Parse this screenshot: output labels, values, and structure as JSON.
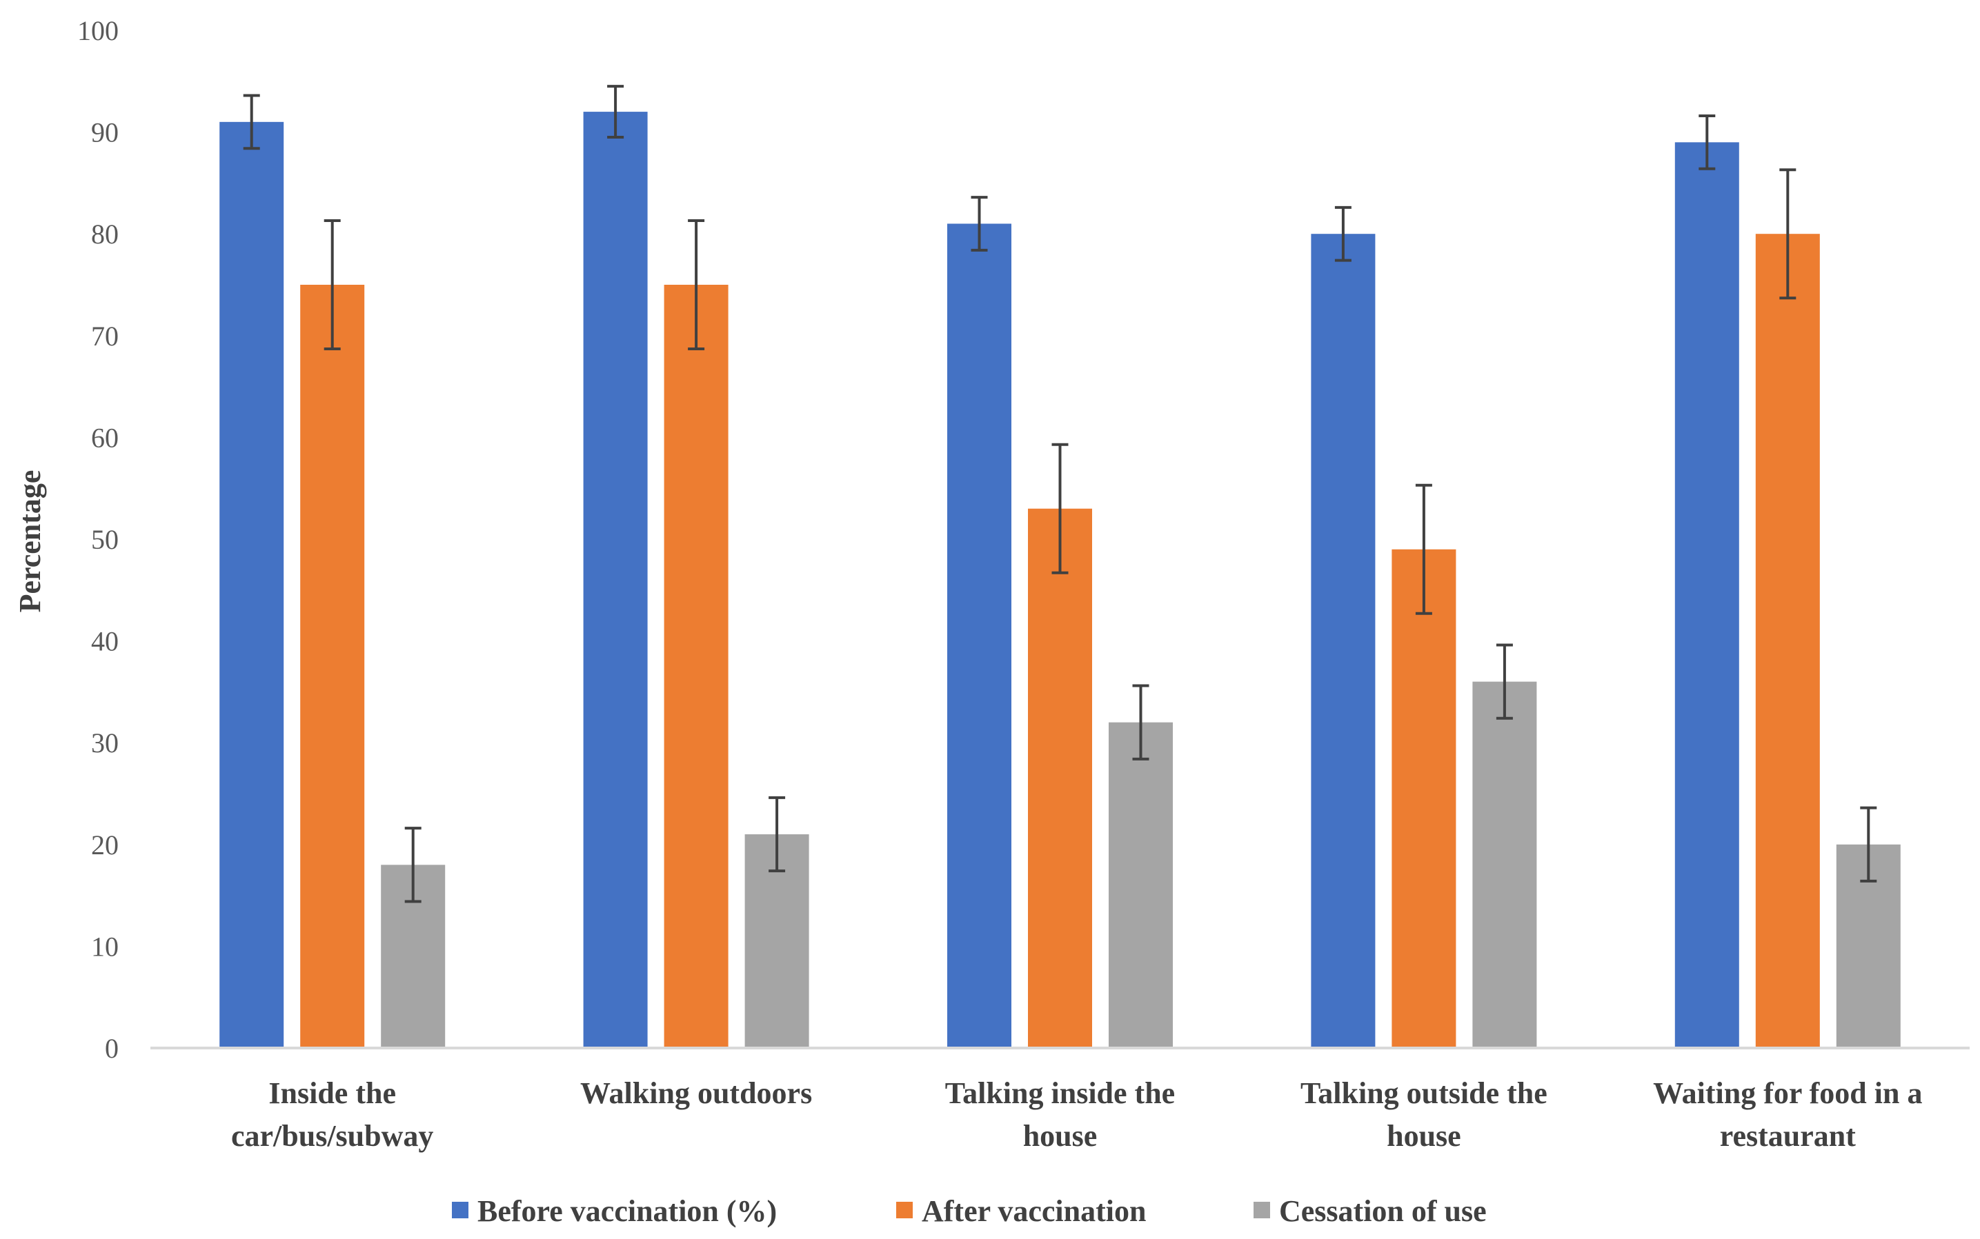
{
  "chart_data": {
    "type": "bar",
    "title": "",
    "xlabel": "",
    "ylabel": "Percentage",
    "ylim": [
      0,
      100
    ],
    "yticks": [
      0,
      10,
      20,
      30,
      40,
      50,
      60,
      70,
      80,
      90,
      100
    ],
    "grid": false,
    "legend_position": "bottom",
    "categories": [
      [
        "Inside the",
        "car/bus/subway"
      ],
      [
        "Walking outdoors"
      ],
      [
        "Talking inside the",
        "house"
      ],
      [
        "Talking outside the",
        "house"
      ],
      [
        "Waiting for food in a",
        "restaurant"
      ]
    ],
    "series": [
      {
        "name": "Before vaccination (%)",
        "color": "#4472C4",
        "values": [
          91,
          92,
          81,
          80,
          89
        ],
        "errors": [
          2.6,
          2.5,
          2.6,
          2.6,
          2.6
        ]
      },
      {
        "name": "After vaccination",
        "color": "#ED7D31",
        "values": [
          75,
          75,
          53,
          49,
          80
        ],
        "errors": [
          6.3,
          6.3,
          6.3,
          6.3,
          6.3
        ]
      },
      {
        "name": "Cessation of use",
        "color": "#A5A5A5",
        "values": [
          18,
          21,
          32,
          36,
          20
        ],
        "errors": [
          3.6,
          3.6,
          3.6,
          3.6,
          3.6
        ]
      }
    ]
  }
}
